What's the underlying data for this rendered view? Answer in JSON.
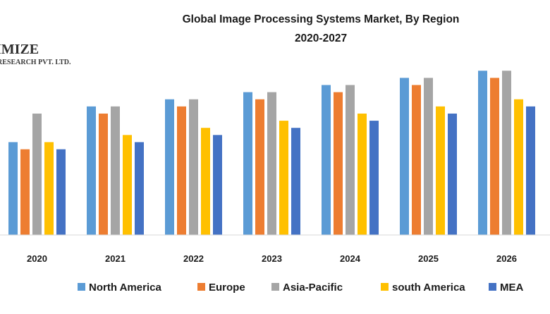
{
  "logo": {
    "line1": "IMIZE",
    "line2": "RESEARCH PVT. LTD."
  },
  "chart_data": {
    "type": "bar",
    "title_lines": [
      "Global Image Processing Systems Market, By Region",
      "2020-2027"
    ],
    "xlabel": "",
    "ylabel": "",
    "categories": [
      "2020",
      "2021",
      "2022",
      "2023",
      "2024",
      "2025",
      "2026"
    ],
    "series": [
      {
        "name": "North America",
        "color": "#5B9BD5",
        "values": [
          13,
          18,
          19,
          20,
          21,
          22,
          23
        ]
      },
      {
        "name": "Europe",
        "color": "#ED7D31",
        "values": [
          12,
          17,
          18,
          19,
          20,
          21,
          22
        ]
      },
      {
        "name": "Asia-Pacific",
        "color": "#A5A5A5",
        "values": [
          17,
          18,
          19,
          20,
          21,
          22,
          23
        ]
      },
      {
        "name": "south America",
        "color": "#FFC000",
        "values": [
          13,
          14,
          15,
          16,
          17,
          18,
          19
        ]
      },
      {
        "name": "MEA",
        "color": "#4472C4",
        "values": [
          12,
          13,
          14,
          15,
          16,
          17,
          18
        ]
      }
    ],
    "ylim": [
      0,
      25
    ],
    "grid": false,
    "legend_position": "bottom",
    "partially_visible_category_right": true
  }
}
